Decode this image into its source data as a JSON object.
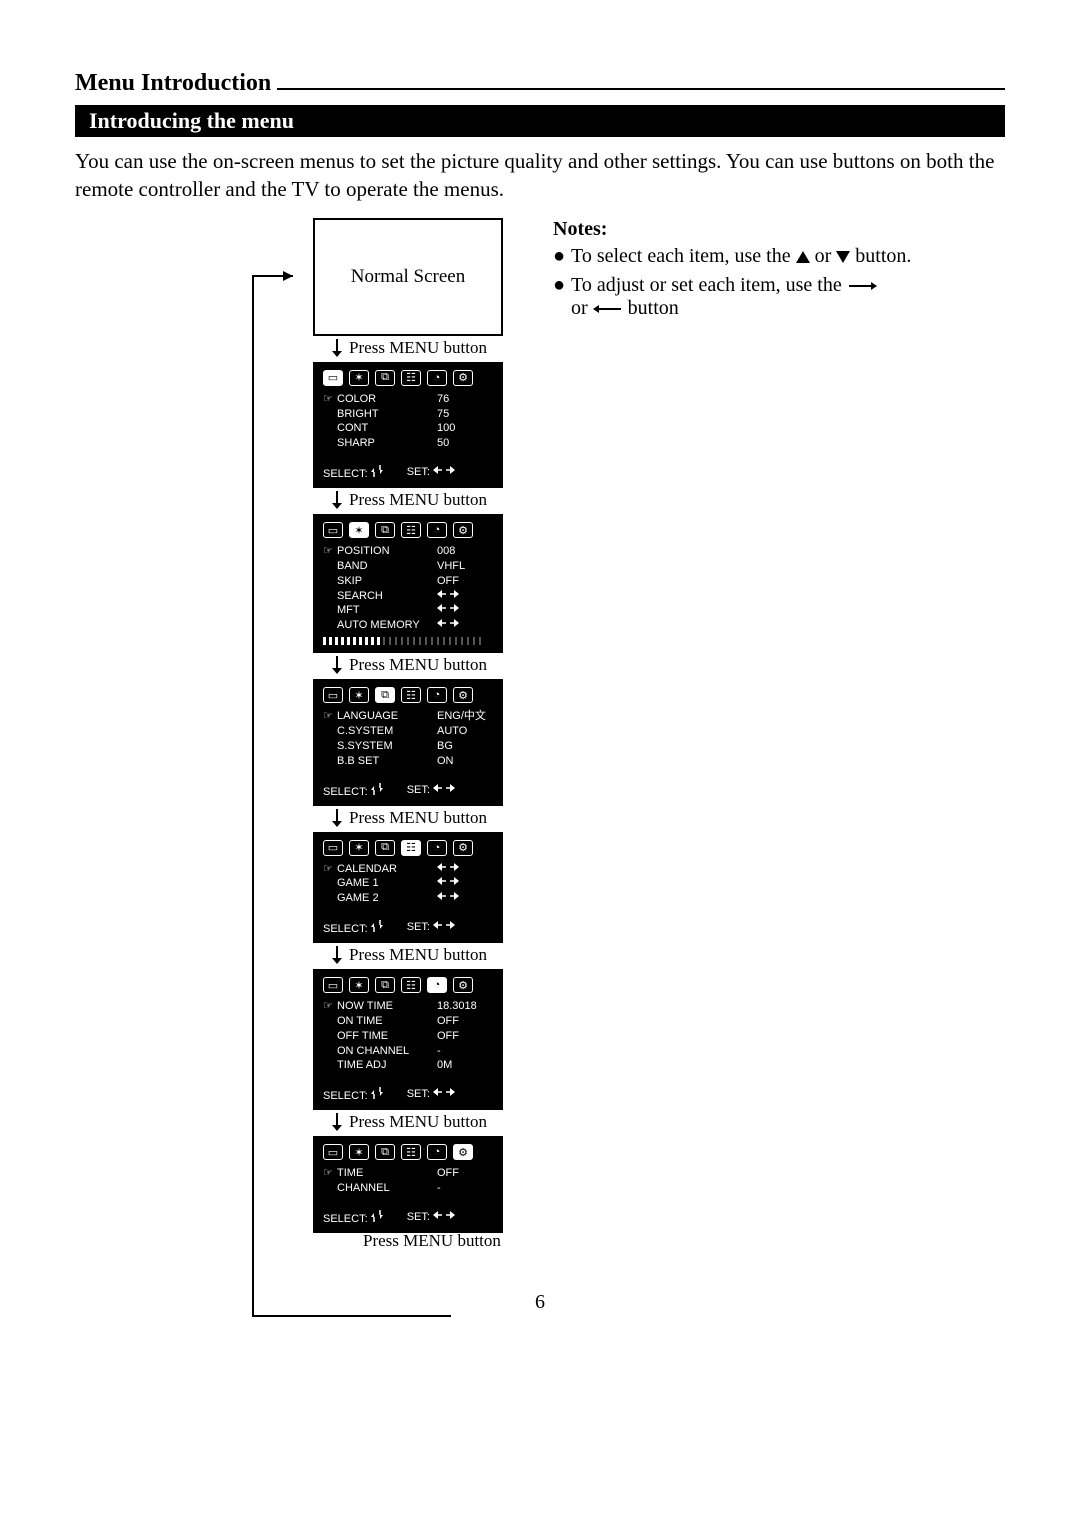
{
  "page": {
    "title": "Menu Introduction",
    "subtitle": "Introducing the menu",
    "intro": "You can use the on-screen menus to set the picture quality and other settings. You can use buttons on both the remote controller and the TV to operate the menus.",
    "page_number": "6"
  },
  "normal_screen": "Normal Screen",
  "press_menu": "Press MENU button",
  "select_label": "SELECT:",
  "set_label": "SET:",
  "menus": {
    "m1": {
      "active": 0,
      "rows": [
        {
          "ptr": "☞",
          "lab": "COLOR",
          "val": "76"
        },
        {
          "ptr": "",
          "lab": "BRIGHT",
          "val": "75"
        },
        {
          "ptr": "",
          "lab": "CONT",
          "val": "100"
        },
        {
          "ptr": "",
          "lab": "SHARP",
          "val": "50"
        }
      ],
      "footer": true
    },
    "m2": {
      "active": 1,
      "rows": [
        {
          "ptr": "☞",
          "lab": "POSITION",
          "val": "008"
        },
        {
          "ptr": "",
          "lab": "BAND",
          "val": "VHFL"
        },
        {
          "ptr": "",
          "lab": "SKIP",
          "val": "OFF"
        },
        {
          "ptr": "",
          "lab": "SEARCH",
          "val": "↔"
        },
        {
          "ptr": "",
          "lab": "MFT",
          "val": "↔"
        },
        {
          "ptr": "",
          "lab": "AUTO MEMORY",
          "val": "↔"
        }
      ],
      "progress": true,
      "footer": false
    },
    "m3": {
      "active": 2,
      "rows": [
        {
          "ptr": "☞",
          "lab": "LANGUAGE",
          "val": "ENG/中文"
        },
        {
          "ptr": "",
          "lab": "C.SYSTEM",
          "val": "AUTO"
        },
        {
          "ptr": "",
          "lab": "S.SYSTEM",
          "val": "BG"
        },
        {
          "ptr": "",
          "lab": "B.B SET",
          "val": "ON"
        }
      ],
      "footer": true
    },
    "m4": {
      "active": 3,
      "rows": [
        {
          "ptr": "☞",
          "lab": "CALENDAR",
          "val": "↔"
        },
        {
          "ptr": "",
          "lab": "GAME 1",
          "val": "↔"
        },
        {
          "ptr": "",
          "lab": "GAME 2",
          "val": "↔"
        }
      ],
      "footer": true
    },
    "m5": {
      "active": 4,
      "rows": [
        {
          "ptr": "☞",
          "lab": "NOW TIME",
          "val": "18.3018"
        },
        {
          "ptr": "",
          "lab": "ON   TIME",
          "val": "OFF"
        },
        {
          "ptr": "",
          "lab": "OFF  TIME",
          "val": "OFF"
        },
        {
          "ptr": "",
          "lab": "ON CHANNEL",
          "val": "-"
        },
        {
          "ptr": "",
          "lab": "TIME ADJ",
          "val": "0M"
        }
      ],
      "footer": true
    },
    "m6": {
      "active": 5,
      "rows": [
        {
          "ptr": "☞",
          "lab": "TIME",
          "val": "OFF"
        },
        {
          "ptr": "",
          "lab": "CHANNEL",
          "val": "-"
        }
      ],
      "footer": true
    }
  },
  "notes": {
    "heading": "Notes:",
    "n1a": "To select each item, use the ",
    "n1b": " or ",
    "n1c": " button.",
    "n2a": "To adjust or set each item, use the",
    "n2b": "or",
    "n2c": " button"
  }
}
